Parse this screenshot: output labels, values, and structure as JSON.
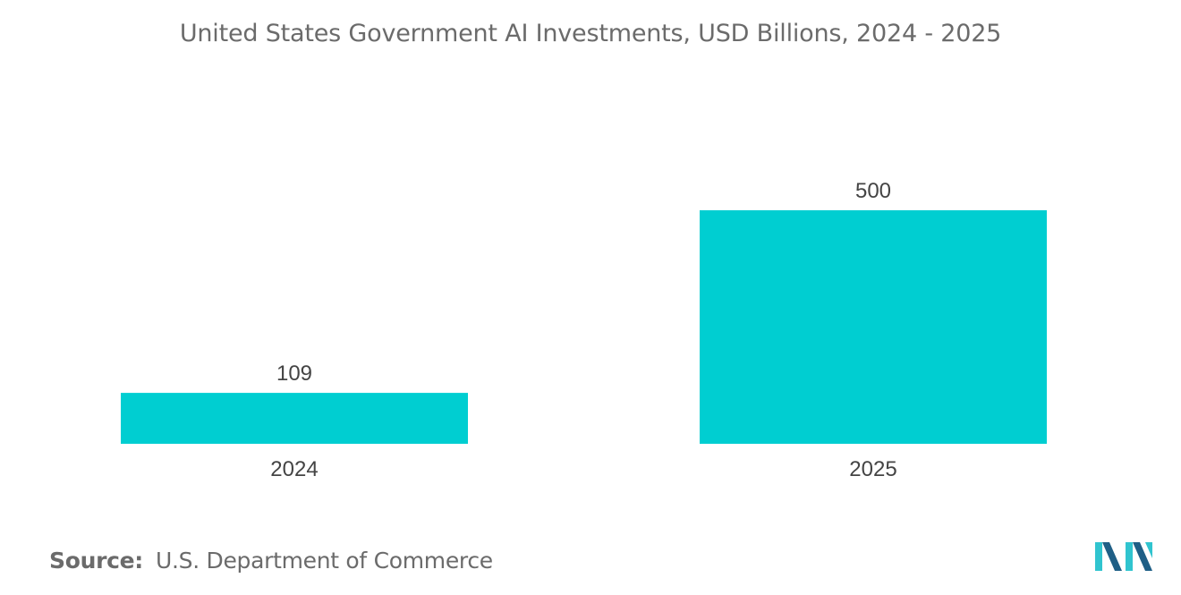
{
  "chart_data": {
    "type": "bar",
    "title": "United States Government AI Investments, USD Billions, 2024 - 2025",
    "categories": [
      "2024",
      "2025"
    ],
    "values": [
      109,
      500
    ],
    "data_labels": [
      "109",
      "500"
    ],
    "xlabel": "",
    "ylabel": "",
    "grid": false,
    "legend": "none"
  },
  "source": {
    "label": "Source:",
    "text": "U.S. Department of Commerce"
  },
  "colors": {
    "bar": "#00CED1",
    "text": "#6b6b6b",
    "logo_dark": "#1f5f86",
    "logo_light": "#30c4cf"
  },
  "logo": {
    "icon": "mordor-intelligence-logo-icon"
  }
}
